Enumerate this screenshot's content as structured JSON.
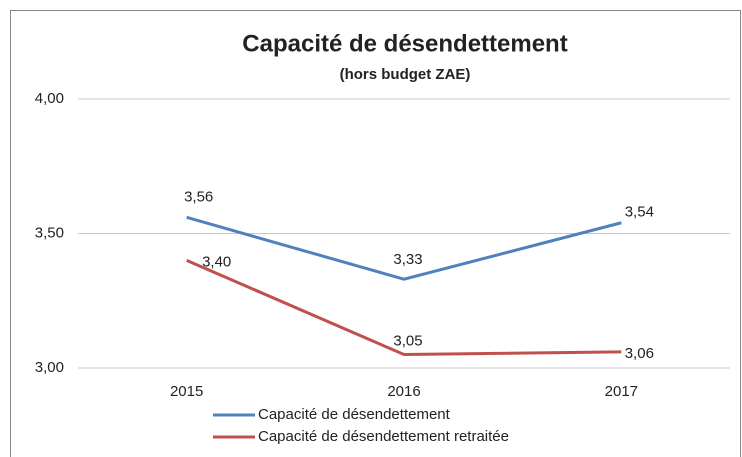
{
  "chart_data": {
    "type": "line",
    "title": "Capacité de désendettement",
    "subtitle": "(hors budget ZAE)",
    "categories": [
      "2015",
      "2016",
      "2017"
    ],
    "series": [
      {
        "name": "Capacité de désendettement",
        "color": "#4f81bd",
        "values": [
          3.56,
          3.33,
          3.54
        ],
        "value_labels": [
          "3,56",
          "3,33",
          "3,54"
        ]
      },
      {
        "name": "Capacité de désendettement retraitée",
        "color": "#c0504d",
        "values": [
          3.4,
          3.05,
          3.06
        ],
        "value_labels": [
          "3,40",
          "3,05",
          "3,06"
        ]
      }
    ],
    "ylim": [
      3,
      4
    ],
    "yticks": [
      {
        "value": 3,
        "label": "3,00"
      },
      {
        "value": 3.5,
        "label": "3,50"
      },
      {
        "value": 4,
        "label": "4,00"
      }
    ],
    "grid": true,
    "legend": "bottom"
  }
}
